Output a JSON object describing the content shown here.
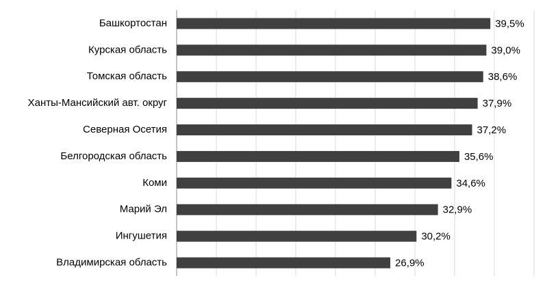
{
  "chart_data": {
    "type": "bar",
    "orientation": "horizontal",
    "categories": [
      "Башкортостан",
      "Курская область",
      "Томская область",
      "Ханты-Мансийский авт. округ",
      "Северная Осетия",
      "Белгородская область",
      "Коми",
      "Марий Эл",
      "Ингушетия",
      "Владимирская область"
    ],
    "values": [
      39.5,
      39.0,
      38.6,
      37.9,
      37.2,
      35.6,
      34.6,
      32.9,
      30.2,
      26.9
    ],
    "value_labels": [
      "39,5%",
      "39,0%",
      "38,6%",
      "37,9%",
      "37,2%",
      "35,6%",
      "34,6%",
      "32,9%",
      "30,2%",
      "26,9%"
    ],
    "color": "#404040",
    "xlim": [
      0,
      45
    ],
    "xticks": [
      0,
      5,
      10,
      15,
      20,
      25,
      30,
      35,
      40,
      45
    ],
    "grid": true
  }
}
